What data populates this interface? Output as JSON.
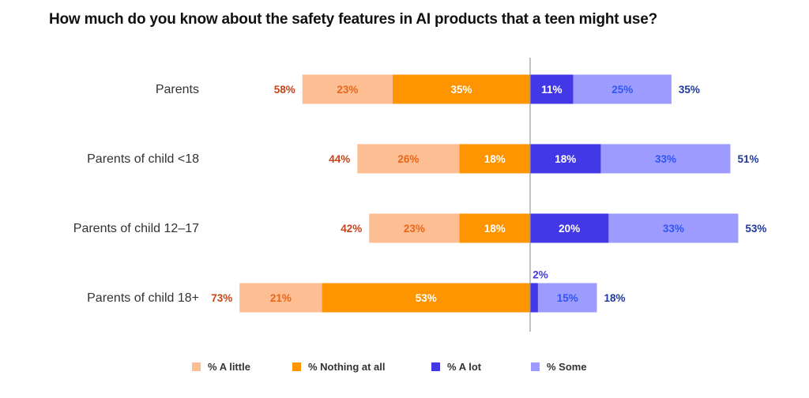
{
  "chart_data": {
    "type": "bar",
    "subtype": "diverging-stacked-horizontal",
    "title": "How much do you know about the safety features in AI products that a teen might use?",
    "categories": [
      "Parents",
      "Parents of child <18",
      "Parents of child 12–17",
      "Parents of child 18+"
    ],
    "series": [
      {
        "name": "% A little",
        "side": "negative",
        "color": "#fdbe93",
        "label_color": "#e8681a",
        "values": [
          23,
          26,
          23,
          21
        ]
      },
      {
        "name": "% Nothing at all",
        "side": "negative",
        "color": "#fd9400",
        "label_color": "#ffffff",
        "values": [
          35,
          18,
          18,
          53
        ]
      },
      {
        "name": "% A lot",
        "side": "positive",
        "color": "#4338e6",
        "label_color": "#ffffff",
        "values": [
          11,
          18,
          20,
          2
        ]
      },
      {
        "name": "% Some",
        "side": "positive",
        "color": "#9d9cfe",
        "label_color": "#2f55f2",
        "values": [
          25,
          33,
          33,
          15
        ]
      }
    ],
    "negative_totals": [
      "58%",
      "44%",
      "42%",
      "73%"
    ],
    "positive_totals": [
      "35%",
      "51%",
      "53%",
      "18%"
    ],
    "segment_labels": [
      [
        "23%",
        "35%",
        "11%",
        "25%"
      ],
      [
        "26%",
        "18%",
        "18%",
        "33%"
      ],
      [
        "23%",
        "18%",
        "20%",
        "33%"
      ],
      [
        "21%",
        "53%",
        "2%",
        "15%"
      ]
    ],
    "negative_total_color": "#c4451a",
    "positive_total_color": "#1f3a9c",
    "legend_position": "bottom",
    "grid": false,
    "xlim": [
      -75,
      60
    ]
  }
}
